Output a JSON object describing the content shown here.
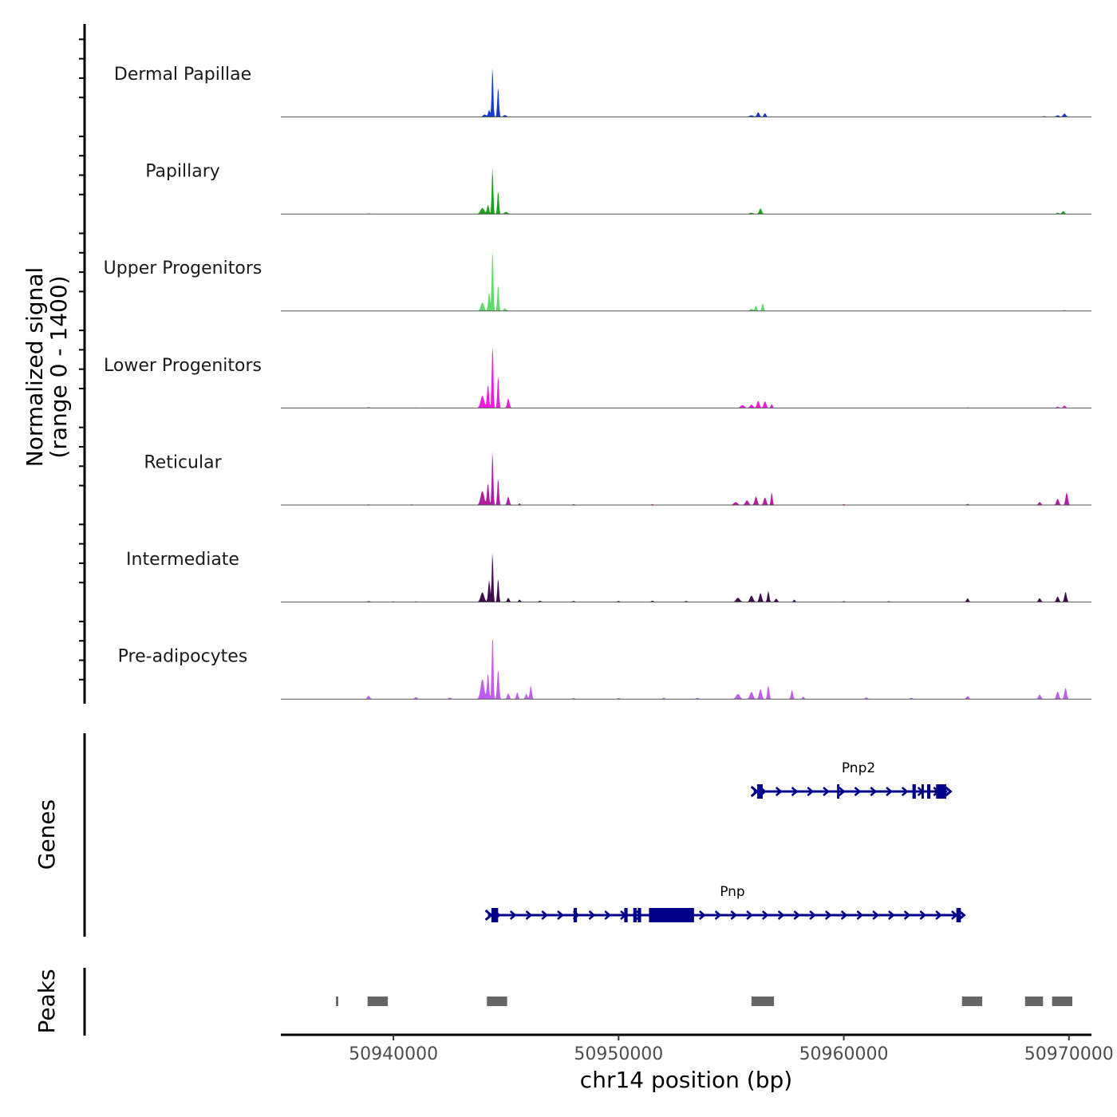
{
  "chart_data": {
    "type": "area",
    "chromosome": "chr14",
    "xlabel": "chr14 position (bp)",
    "xlim": [
      50935000,
      50971000
    ],
    "x_ticks": [
      50940000,
      50950000,
      50960000,
      50970000
    ],
    "x_tick_labels": [
      "50940000",
      "50950000",
      "50960000",
      "50970000"
    ],
    "signal_panel": {
      "ylabel_line1": "Normalized signal",
      "ylabel_line2": "(range 0 - 1400)",
      "ylim": [
        0,
        1400
      ]
    },
    "series": [
      {
        "name": "Dermal Papillae",
        "color": "#1538d6",
        "peaks": [
          [
            50944050,
            60,
            100
          ],
          [
            50944250,
            170,
            60
          ],
          [
            50944400,
            1220,
            45
          ],
          [
            50944650,
            720,
            50
          ],
          [
            50944950,
            45,
            100
          ],
          [
            50955900,
            40,
            120
          ],
          [
            50956200,
            110,
            80
          ],
          [
            50956500,
            90,
            70
          ],
          [
            50968900,
            20,
            80
          ],
          [
            50969500,
            40,
            100
          ],
          [
            50969800,
            80,
            90
          ]
        ]
      },
      {
        "name": "Papillary",
        "color": "#1aa31a",
        "peaks": [
          [
            50938900,
            12,
            100
          ],
          [
            50943950,
            140,
            120
          ],
          [
            50944200,
            220,
            60
          ],
          [
            50944400,
            1150,
            45
          ],
          [
            50944650,
            560,
            50
          ],
          [
            50945000,
            50,
            100
          ],
          [
            50955900,
            30,
            120
          ],
          [
            50956300,
            130,
            80
          ],
          [
            50969500,
            30,
            80
          ],
          [
            50969750,
            70,
            80
          ]
        ]
      },
      {
        "name": "Upper Progenitors",
        "color": "#5fdc6a",
        "peaks": [
          [
            50943950,
            200,
            100
          ],
          [
            50944250,
            440,
            60
          ],
          [
            50944400,
            1640,
            45
          ],
          [
            50944650,
            640,
            50
          ],
          [
            50944950,
            60,
            90
          ],
          [
            50955900,
            50,
            100
          ],
          [
            50956100,
            130,
            60
          ],
          [
            50956400,
            180,
            60
          ],
          [
            50969800,
            25,
            80
          ]
        ]
      },
      {
        "name": "Lower Progenitors",
        "color": "#ee1bdd",
        "peaks": [
          [
            50938900,
            20,
            100
          ],
          [
            50941000,
            10,
            100
          ],
          [
            50943950,
            290,
            110
          ],
          [
            50944200,
            560,
            60
          ],
          [
            50944400,
            1730,
            45
          ],
          [
            50944650,
            780,
            50
          ],
          [
            50945100,
            230,
            70
          ],
          [
            50955500,
            70,
            120
          ],
          [
            50955900,
            80,
            100
          ],
          [
            50956200,
            170,
            80
          ],
          [
            50956500,
            160,
            80
          ],
          [
            50956800,
            90,
            60
          ],
          [
            50965500,
            15,
            100
          ],
          [
            50969500,
            30,
            90
          ],
          [
            50969800,
            60,
            80
          ]
        ]
      },
      {
        "name": "Reticular",
        "color": "#b01da3",
        "peaks": [
          [
            50938900,
            15,
            100
          ],
          [
            50940800,
            15,
            100
          ],
          [
            50943950,
            330,
            110
          ],
          [
            50944200,
            520,
            60
          ],
          [
            50944400,
            1320,
            45
          ],
          [
            50944650,
            650,
            50
          ],
          [
            50945100,
            200,
            70
          ],
          [
            50945600,
            40,
            60
          ],
          [
            50948000,
            20,
            80
          ],
          [
            50951500,
            20,
            80
          ],
          [
            50955200,
            70,
            120
          ],
          [
            50955700,
            110,
            100
          ],
          [
            50956100,
            200,
            80
          ],
          [
            50956500,
            180,
            80
          ],
          [
            50956800,
            310,
            50
          ],
          [
            50960000,
            20,
            80
          ],
          [
            50965500,
            25,
            80
          ],
          [
            50968700,
            70,
            80
          ],
          [
            50969500,
            150,
            80
          ],
          [
            50969900,
            300,
            70
          ]
        ]
      },
      {
        "name": "Intermediate",
        "color": "#3e0e4f",
        "peaks": [
          [
            50938900,
            20,
            100
          ],
          [
            50940000,
            15,
            80
          ],
          [
            50941000,
            15,
            80
          ],
          [
            50943950,
            230,
            110
          ],
          [
            50944250,
            520,
            60
          ],
          [
            50944400,
            1220,
            45
          ],
          [
            50944650,
            570,
            50
          ],
          [
            50945100,
            100,
            70
          ],
          [
            50945600,
            60,
            60
          ],
          [
            50946500,
            30,
            80
          ],
          [
            50948000,
            25,
            80
          ],
          [
            50950000,
            25,
            80
          ],
          [
            50951500,
            30,
            80
          ],
          [
            50953000,
            25,
            80
          ],
          [
            50955300,
            100,
            120
          ],
          [
            50955900,
            150,
            100
          ],
          [
            50956300,
            210,
            80
          ],
          [
            50956650,
            260,
            60
          ],
          [
            50957000,
            80,
            80
          ],
          [
            50957800,
            60,
            60
          ],
          [
            50960000,
            20,
            80
          ],
          [
            50962000,
            20,
            80
          ],
          [
            50965500,
            90,
            70
          ],
          [
            50968700,
            90,
            80
          ],
          [
            50969500,
            130,
            80
          ],
          [
            50969850,
            240,
            70
          ]
        ]
      },
      {
        "name": "Pre-adipocytes",
        "color": "#c05df0",
        "peaks": [
          [
            50938900,
            80,
            80
          ],
          [
            50941000,
            45,
            80
          ],
          [
            50942500,
            35,
            80
          ],
          [
            50943950,
            470,
            110
          ],
          [
            50944200,
            620,
            60
          ],
          [
            50944400,
            1850,
            45
          ],
          [
            50944650,
            710,
            60
          ],
          [
            50945100,
            140,
            70
          ],
          [
            50945500,
            160,
            60
          ],
          [
            50945900,
            130,
            60
          ],
          [
            50946100,
            320,
            60
          ],
          [
            50948000,
            25,
            80
          ],
          [
            50950000,
            25,
            80
          ],
          [
            50952000,
            30,
            80
          ],
          [
            50953500,
            30,
            80
          ],
          [
            50955300,
            120,
            120
          ],
          [
            50955900,
            170,
            100
          ],
          [
            50956300,
            240,
            80
          ],
          [
            50956650,
            330,
            60
          ],
          [
            50957700,
            220,
            60
          ],
          [
            50958200,
            60,
            60
          ],
          [
            50961000,
            40,
            80
          ],
          [
            50963000,
            30,
            80
          ],
          [
            50965500,
            70,
            80
          ],
          [
            50968700,
            110,
            80
          ],
          [
            50969500,
            180,
            80
          ],
          [
            50969850,
            270,
            70
          ]
        ]
      }
    ],
    "genes_panel": {
      "ylabel": "Genes",
      "genes": [
        {
          "name": "Pnp2",
          "strand": "+",
          "start": 50956000,
          "end": 50964600,
          "color": "#00008b",
          "exons": [
            [
              50956150,
              50956400
            ],
            [
              50959700,
              50959800
            ],
            [
              50963050,
              50963200
            ],
            [
              50963450,
              50963550
            ],
            [
              50963700,
              50963850
            ],
            [
              50964100,
              50964550
            ]
          ],
          "thick": []
        },
        {
          "name": "Pnp",
          "strand": "+",
          "start": 50944200,
          "end": 50965200,
          "color": "#00008b",
          "exons": [
            [
              50944350,
              50944650
            ],
            [
              50948000,
              50948150
            ],
            [
              50950250,
              50950400
            ],
            [
              50950650,
              50950800
            ],
            [
              50950850,
              50951000
            ],
            [
              50965000,
              50965200
            ]
          ],
          "thick": [
            [
              50951350,
              50953350
            ]
          ]
        }
      ]
    },
    "peaks_panel": {
      "ylabel": "Peaks",
      "regions": [
        [
          50937450,
          50937550
        ],
        [
          50938850,
          50939750
        ],
        [
          50944150,
          50945050
        ],
        [
          50955900,
          50956900
        ],
        [
          50965250,
          50966150
        ],
        [
          50968050,
          50968850
        ],
        [
          50969250,
          50970150
        ]
      ],
      "color": "#666666"
    }
  }
}
